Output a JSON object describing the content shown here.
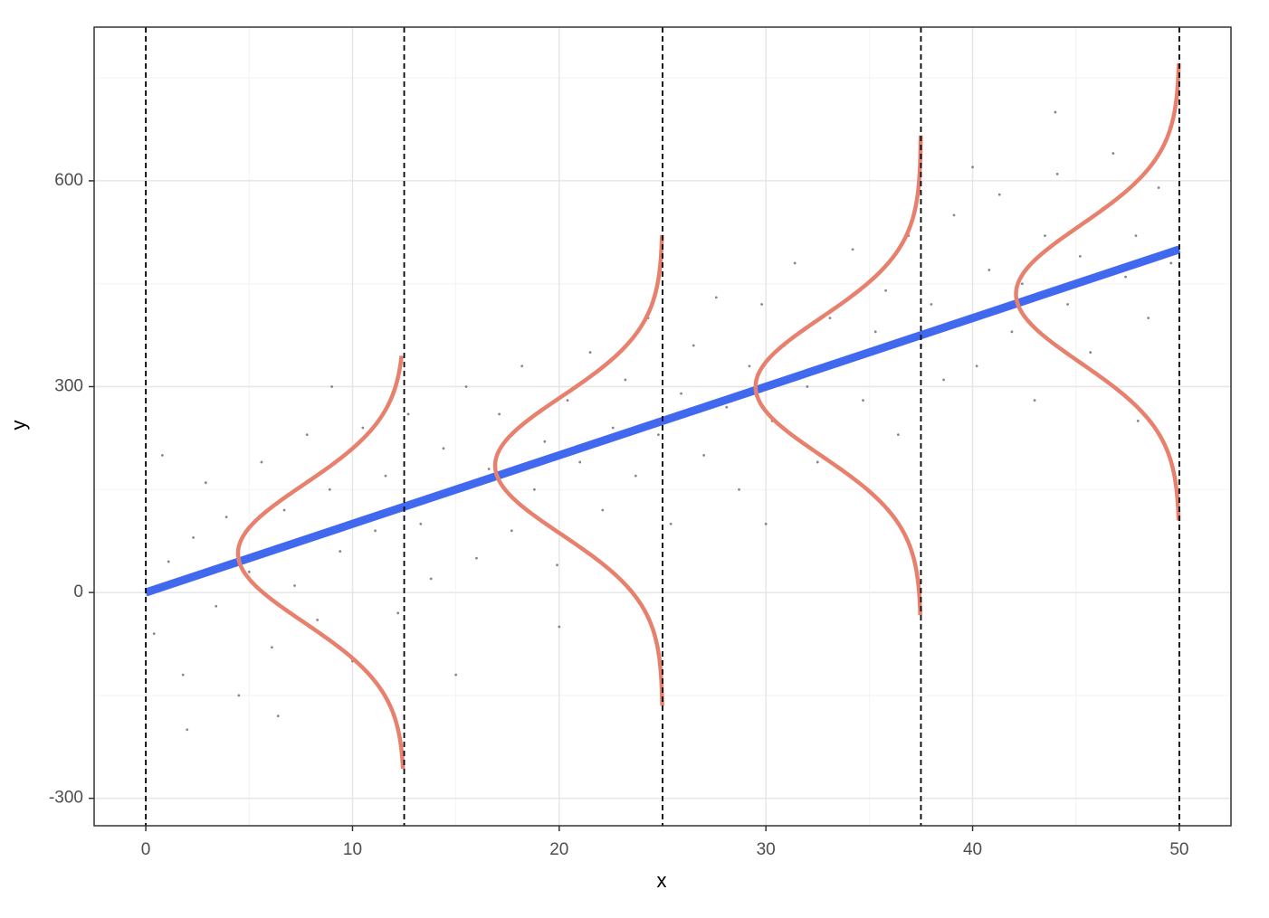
{
  "chart_data": {
    "type": "scatter",
    "x_label": "x",
    "y_label": "y",
    "xlim": [
      -2.5,
      52.5
    ],
    "ylim": [
      -340,
      824
    ],
    "xticks": [
      0,
      10,
      20,
      30,
      40,
      50
    ],
    "yticks": [
      -300,
      0,
      300,
      600
    ],
    "x_minor_ticks": [
      5,
      15,
      25,
      35,
      45
    ],
    "y_minor_ticks": [
      -150,
      150,
      450,
      750
    ],
    "grid": true,
    "points": {
      "color": "#555555",
      "x": [
        0.4,
        1.1,
        1.8,
        2.3,
        2.9,
        3.4,
        3.9,
        4.5,
        5.0,
        5.6,
        6.1,
        6.7,
        7.2,
        7.8,
        8.3,
        8.9,
        9.4,
        10.0,
        10.5,
        11.1,
        11.6,
        12.2,
        12.7,
        13.3,
        13.8,
        14.4,
        14.9,
        15.5,
        16.0,
        16.6,
        17.1,
        17.7,
        18.2,
        18.8,
        19.3,
        19.9,
        20.4,
        21.0,
        21.5,
        22.1,
        22.6,
        23.2,
        23.7,
        24.3,
        24.8,
        25.4,
        25.9,
        26.5,
        27.0,
        27.6,
        28.1,
        28.7,
        29.2,
        29.8,
        30.3,
        30.9,
        31.4,
        32.0,
        32.5,
        33.1,
        33.6,
        34.2,
        34.7,
        35.3,
        35.8,
        36.4,
        36.9,
        37.5,
        38.0,
        38.6,
        39.1,
        39.7,
        40.2,
        40.8,
        41.3,
        41.9,
        42.4,
        43.0,
        43.5,
        44.1,
        44.6,
        45.2,
        45.7,
        46.3,
        46.8,
        47.4,
        47.9,
        48.5,
        49.0,
        49.6,
        0.8,
        2.0,
        6.4,
        9.0,
        20.0,
        30.0,
        40.0,
        48.0,
        15.0,
        44.0
      ],
      "values": [
        -60,
        45,
        -120,
        80,
        160,
        -20,
        110,
        -150,
        30,
        190,
        -80,
        120,
        10,
        230,
        -40,
        150,
        60,
        -100,
        240,
        90,
        170,
        -30,
        260,
        100,
        20,
        210,
        150,
        300,
        50,
        180,
        260,
        90,
        330,
        150,
        220,
        40,
        280,
        190,
        350,
        120,
        240,
        310,
        170,
        400,
        230,
        100,
        290,
        360,
        200,
        430,
        270,
        150,
        330,
        420,
        250,
        360,
        480,
        300,
        190,
        400,
        340,
        500,
        280,
        380,
        440,
        230,
        520,
        360,
        420,
        310,
        550,
        400,
        330,
        470,
        580,
        380,
        450,
        280,
        520,
        610,
        420,
        490,
        350,
        560,
        640,
        460,
        520,
        400,
        590,
        480,
        200,
        -200,
        -180,
        300,
        -50,
        100,
        620,
        250,
        -120,
        700
      ]
    },
    "fit": {
      "color": "#4169f0",
      "x": [
        0,
        50
      ],
      "values": [
        0,
        500
      ]
    },
    "vlines": [
      0,
      12.5,
      25,
      37.5,
      50
    ],
    "densities": {
      "color": "#e8806e",
      "curves": [
        {
          "x": 12.5,
          "height": 8.04,
          "mean": 57,
          "sd": 100,
          "from": -257,
          "to": 345
        },
        {
          "x": 25,
          "height": 8.1,
          "mean": 185,
          "sd": 100,
          "from": -165,
          "to": 521
        },
        {
          "x": 37.5,
          "height": 8.0,
          "mean": 300,
          "sd": 100,
          "from": -33,
          "to": 666
        },
        {
          "x": 50,
          "height": 7.9,
          "mean": 435,
          "sd": 100,
          "from": 105,
          "to": 771
        }
      ]
    }
  }
}
